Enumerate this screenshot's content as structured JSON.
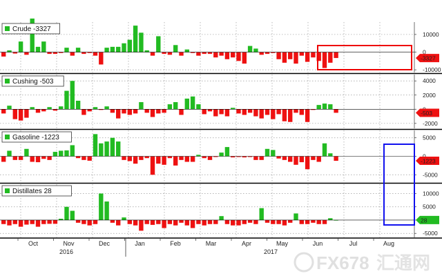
{
  "chart_data": [
    {
      "type": "bar",
      "legend": "Crude -3327",
      "last_label": "-3327",
      "ylim": [
        -11500,
        17000
      ],
      "yticks": [
        10000,
        0,
        -10000
      ],
      "ytick_labels": [
        "10000",
        "0",
        "-10000"
      ],
      "values": [
        -2500,
        1000,
        -800,
        6000,
        -1500,
        19000,
        3000,
        6000,
        -1000,
        -1000,
        -500,
        2500,
        -2000,
        2500,
        -1000,
        -500,
        -2000,
        -7000,
        2500,
        3000,
        3000,
        5000,
        7000,
        15000,
        11000,
        1000,
        -2000,
        9000,
        -1000,
        -1500,
        4000,
        -2000,
        1500,
        -500,
        -2000,
        -1000,
        -1000,
        -3000,
        -2000,
        -4000,
        -3000,
        -5000,
        -6500,
        3500,
        2000,
        -1500,
        -1000,
        -500,
        -4000,
        -6000,
        -4000,
        -6500,
        -2000,
        -5500,
        -3000,
        -5000,
        -9000,
        -6000,
        -3327
      ]
    },
    {
      "type": "bar",
      "legend": "Cushing -503",
      "last_label": "-503",
      "ylim": [
        -2700,
        4900
      ],
      "yticks": [
        4000,
        2000,
        0,
        -2000
      ],
      "ytick_labels": [
        "4000",
        "2000",
        "0",
        "-2000"
      ],
      "values": [
        -600,
        500,
        -1400,
        -1600,
        -1200,
        300,
        -500,
        -300,
        300,
        -200,
        400,
        2600,
        4000,
        1200,
        -800,
        -300,
        300,
        -100,
        400,
        -500,
        -1300,
        -600,
        -800,
        -600,
        1000,
        -500,
        -1100,
        -600,
        -500,
        700,
        1000,
        -800,
        1500,
        1800,
        700,
        -700,
        -300,
        -1000,
        -700,
        -1000,
        200,
        -600,
        -800,
        -500,
        -1000,
        -1300,
        -800,
        -1400,
        -700,
        -1700,
        -1800,
        -500,
        -800,
        -1800,
        -100,
        600,
        800,
        700,
        -503
      ]
    },
    {
      "type": "bar",
      "legend": "Gasoline -1223",
      "last_label": "-1223",
      "ylim": [
        -7000,
        7000
      ],
      "yticks": [
        5000,
        0,
        -5000
      ],
      "ytick_labels": [
        "5000",
        "0",
        "-5000"
      ],
      "values": [
        -1500,
        1500,
        -1000,
        -1000,
        2000,
        -1500,
        -1600,
        -700,
        -1000,
        1200,
        1500,
        1600,
        3000,
        -500,
        -1000,
        -1200,
        6000,
        3500,
        4000,
        5000,
        4000,
        -1000,
        -1300,
        -2000,
        -1000,
        -500,
        -5000,
        -2000,
        -2300,
        -500,
        -2500,
        -1000,
        -1500,
        -1500,
        400,
        -500,
        -1000,
        -200,
        1000,
        2500,
        -300,
        -200,
        -300,
        -200,
        -1000,
        -1000,
        2000,
        1700,
        -600,
        -1000,
        -1500,
        -2300,
        -1600,
        -3500,
        -1000,
        -1500,
        3500,
        800,
        -1223
      ]
    },
    {
      "type": "bar",
      "legend": "Distillates 28",
      "last_label": "28",
      "ylim": [
        -6500,
        13500
      ],
      "yticks": [
        10000,
        5000,
        0,
        -5000
      ],
      "ytick_labels": [
        "10000",
        "5000",
        "0",
        "-5000"
      ],
      "values": [
        -1500,
        -2000,
        -1500,
        -2500,
        -1700,
        -1500,
        -2500,
        -1500,
        -1400,
        -1400,
        500,
        5000,
        3500,
        -1000,
        -1500,
        -2000,
        -1500,
        10000,
        7000,
        -1000,
        -2000,
        1000,
        -1500,
        -2000,
        -4000,
        -1500,
        -1800,
        -1500,
        -3000,
        -1500,
        -2000,
        -1000,
        -2000,
        -3000,
        -1500,
        -2000,
        -1500,
        -1500,
        1500,
        -1500,
        -2000,
        -2000,
        -1500,
        -1000,
        -1500,
        4500,
        -1000,
        -1500,
        -1500,
        -2000,
        -1000,
        2500,
        -1500,
        -1500,
        -1000,
        -1500,
        -1500,
        700,
        28
      ]
    }
  ],
  "x_axis": {
    "months": [
      "Oct",
      "Nov",
      "Dec",
      "Jan",
      "Feb",
      "Mar",
      "Apr",
      "May",
      "Jun",
      "Jul",
      "Aug"
    ],
    "years": [
      "2016",
      "2017"
    ]
  },
  "colors": {
    "positive": "#22bb22",
    "negative": "#ee1111",
    "highlight_red": "#ee0000",
    "highlight_blue": "#1010ee",
    "legend_square": "#22bb22",
    "last_tag_negative": "#ee1111",
    "last_tag_positive": "#22bb22"
  },
  "watermark": {
    "text": "FX678",
    "cn": "汇通网"
  }
}
